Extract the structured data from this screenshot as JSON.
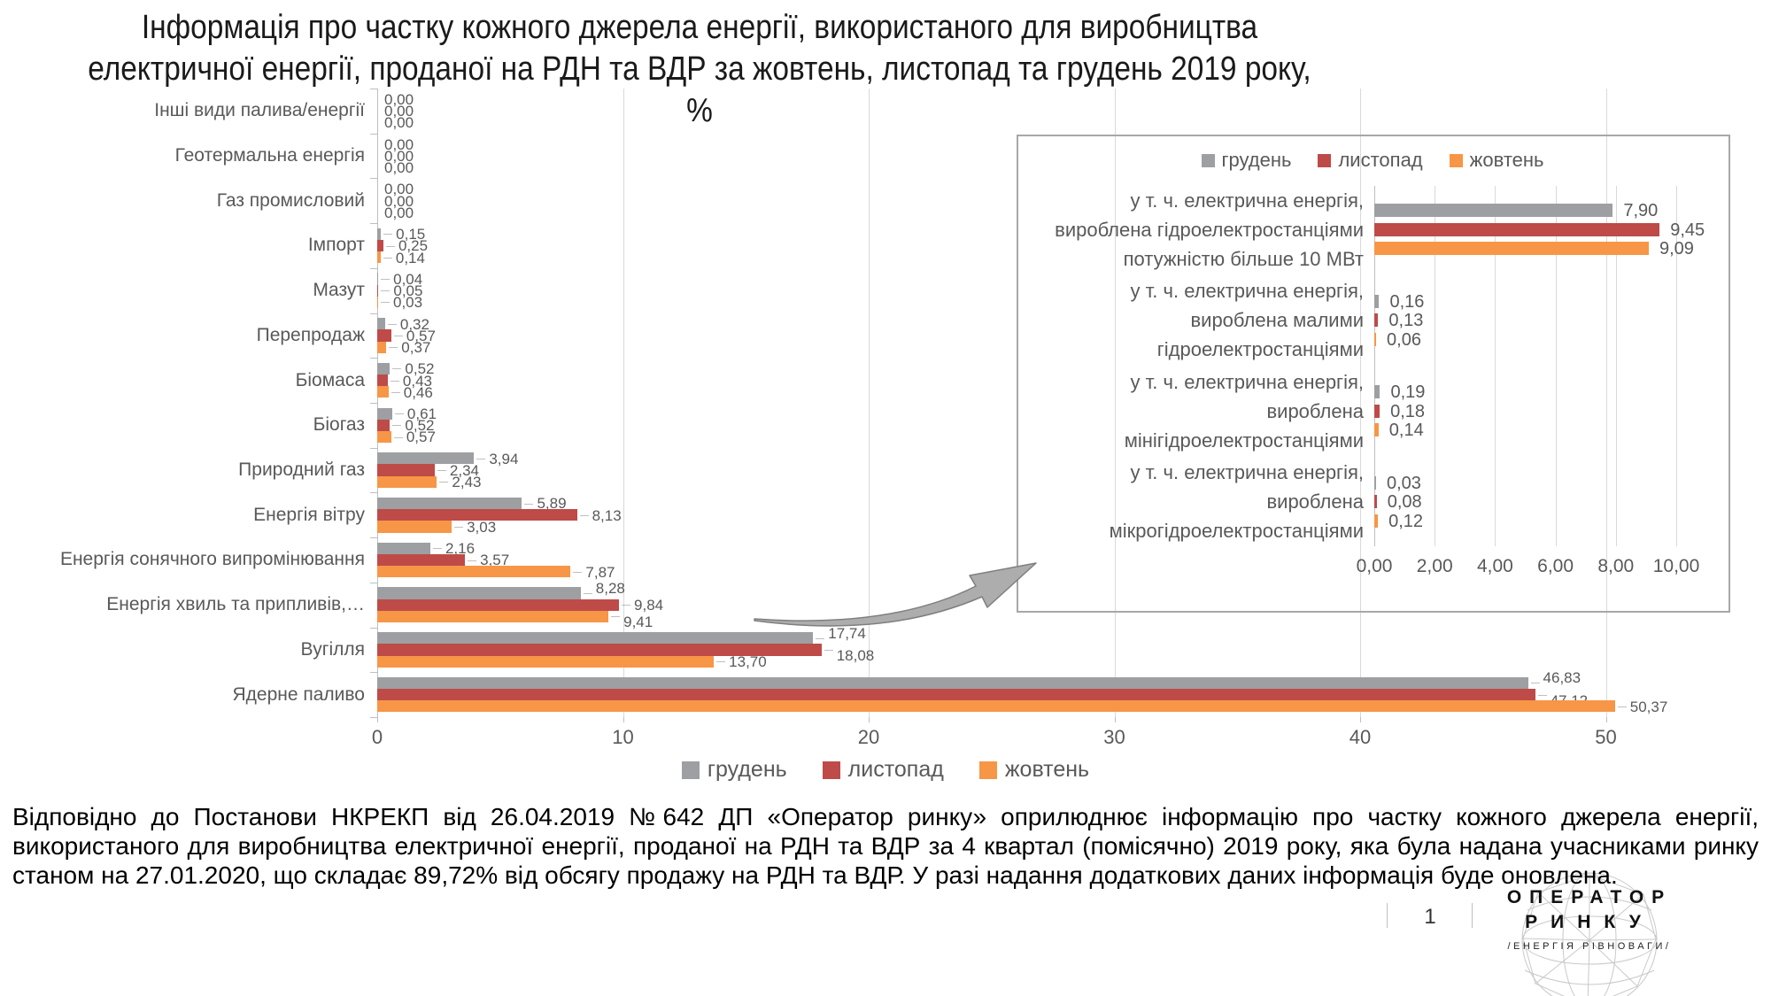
{
  "title": {
    "line1": "Інформація про частку кожного джерела енергії, використаного для виробництва",
    "line2": "електричної енергії, проданої на РДН та ВДР за жовтень, листопад та грудень 2019 року, %"
  },
  "legend": [
    {
      "name": "грудень",
      "color": "#9d9fa2"
    },
    {
      "name": "листопад",
      "color": "#be4b48"
    },
    {
      "name": "жовтень",
      "color": "#f79646"
    }
  ],
  "chart_data": [
    {
      "type": "bar",
      "orientation": "horizontal",
      "title": "",
      "categories": [
        "Інші види палива/енергії",
        "Геотермальна енергія",
        "Газ промисловий",
        "Імпорт",
        "Мазут",
        "Перепродаж",
        "Біомаса",
        "Біогаз",
        "Природний газ",
        "Енергія вітру",
        "Енергія сонячного випромінювання",
        "Енергія хвиль та припливів,…",
        "Вугілля",
        "Ядерне паливо"
      ],
      "series": [
        {
          "name": "грудень",
          "values": [
            0.0,
            0.0,
            0.0,
            0.15,
            0.04,
            0.32,
            0.52,
            0.61,
            3.94,
            5.89,
            2.16,
            8.28,
            17.74,
            46.83
          ]
        },
        {
          "name": "листопад",
          "values": [
            0.0,
            0.0,
            0.0,
            0.25,
            0.05,
            0.57,
            0.43,
            0.52,
            2.34,
            8.13,
            3.57,
            9.84,
            18.08,
            47.12
          ]
        },
        {
          "name": "жовтень",
          "values": [
            0.0,
            0.0,
            0.0,
            0.14,
            0.03,
            0.37,
            0.46,
            0.57,
            2.43,
            3.03,
            7.87,
            9.41,
            13.7,
            50.37
          ]
        }
      ],
      "x_ticks": [
        "0",
        "10",
        "20",
        "30",
        "40",
        "50"
      ],
      "x_tick_values": [
        0,
        10,
        20,
        30,
        40,
        50
      ],
      "xlim": [
        0,
        52.5
      ],
      "grid": true,
      "legend_position": "bottom"
    },
    {
      "type": "bar",
      "orientation": "horizontal",
      "title": "",
      "categories": [
        "у т. ч. електрична енергія,\nвироблена гідроелектростанціями\nпотужністю більше 10 МВт",
        "у т. ч. електрична енергія,\nвироблена малими\nгідроелектростанціями",
        "у т. ч. електрична енергія,\nвироблена\nмінігідроелектростанціями",
        "у т. ч. електрична енергія,\nвироблена\nмікрогідроелектростанціями"
      ],
      "series": [
        {
          "name": "грудень",
          "values": [
            7.9,
            0.16,
            0.19,
            0.03
          ]
        },
        {
          "name": "листопад",
          "values": [
            9.45,
            0.13,
            0.18,
            0.08
          ]
        },
        {
          "name": "жовтень",
          "values": [
            9.09,
            0.06,
            0.14,
            0.12
          ]
        }
      ],
      "x_ticks": [
        "0,00",
        "2,00",
        "4,00",
        "6,00",
        "8,00",
        "10,00"
      ],
      "x_tick_values": [
        0,
        2,
        4,
        6,
        8,
        10
      ],
      "xlim": [
        0,
        11.5
      ],
      "grid": true,
      "legend_position": "top"
    }
  ],
  "footnote": "Відповідно до Постанови НКРЕКП від 26.04.2019 №642 ДП «Оператор ринку» оприлюднює інформацію про частку кожного джерела енергії, використаного для виробництва електричної енергії, проданої на РДН та ВДР за 4 квартал (помісячно) 2019 року, яка була надана учасниками ринку станом на 27.01.2020, що складає 89,72% від обсягу продажу на РДН та ВДР. У разі надання додаткових даних інформація буде оновлена.",
  "footer": {
    "page_number": "1",
    "logo_line1": "ОПЕРАТОР",
    "logo_line2": "РИНКУ",
    "logo_tagline": "/ЕНЕРГІЯ РІВНОВАГИ/"
  }
}
